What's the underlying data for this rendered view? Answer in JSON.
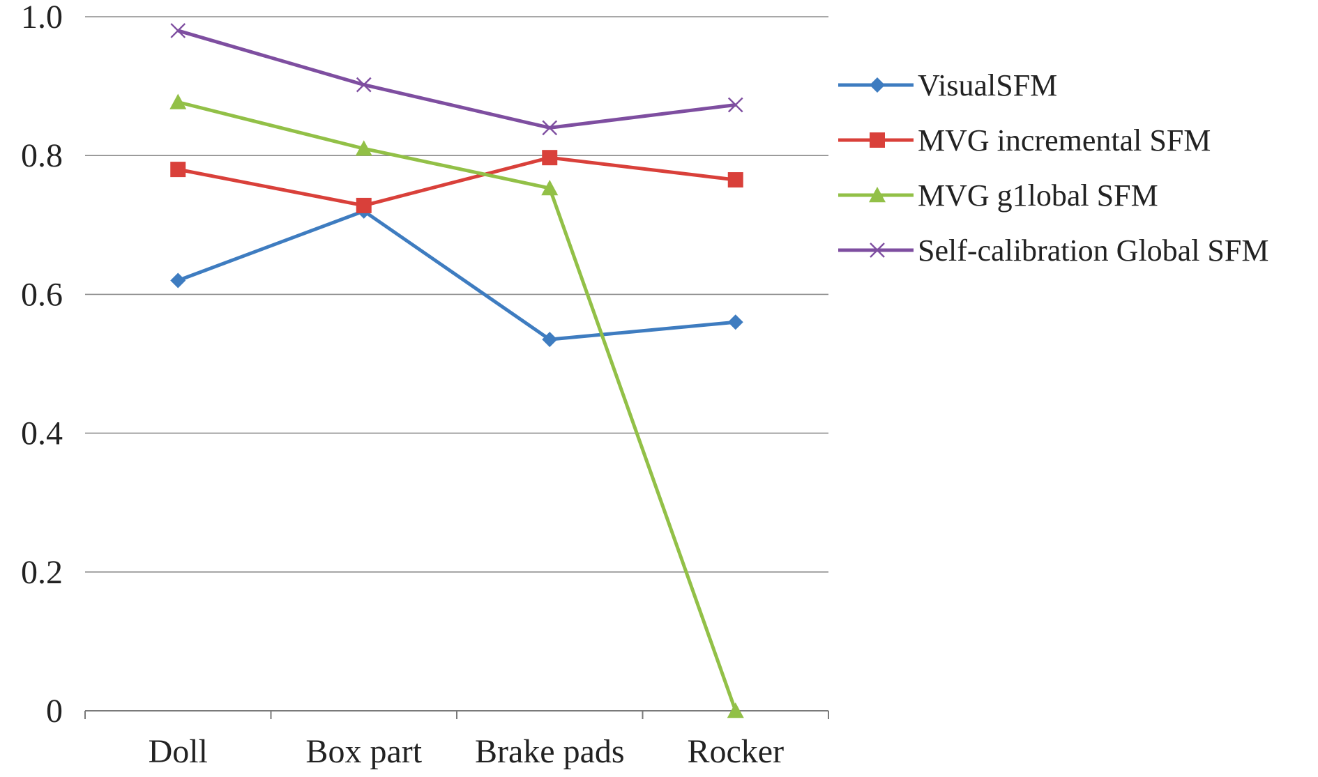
{
  "chart_data": {
    "type": "line",
    "title": "",
    "xlabel": "",
    "ylabel": "",
    "categories": [
      "Doll",
      "Box part",
      "Brake pads",
      "Rocker"
    ],
    "ylim": [
      0,
      1.0
    ],
    "yticks": [
      0,
      0.2,
      0.4,
      0.6,
      0.8,
      1.0
    ],
    "ytick_labels": [
      "0",
      "0.2",
      "0.4",
      "0.6",
      "0.8",
      "1.0"
    ],
    "grid": true,
    "legend_position": "right",
    "series": [
      {
        "name": "VisualSFM",
        "values": [
          0.62,
          0.72,
          0.535,
          0.56
        ],
        "color": "#3E7CC0",
        "marker": "diamond"
      },
      {
        "name": "MVG incremental SFM",
        "values": [
          0.78,
          0.728,
          0.797,
          0.765
        ],
        "color": "#D9403A",
        "marker": "square"
      },
      {
        "name": "MVG g1lobal SFM",
        "values": [
          0.877,
          0.81,
          0.753,
          0.0
        ],
        "color": "#92C047",
        "marker": "triangle"
      },
      {
        "name": "Self-calibration Global SFM",
        "values": [
          0.98,
          0.902,
          0.84,
          0.873
        ],
        "color": "#7E4EA0",
        "marker": "x"
      }
    ]
  }
}
